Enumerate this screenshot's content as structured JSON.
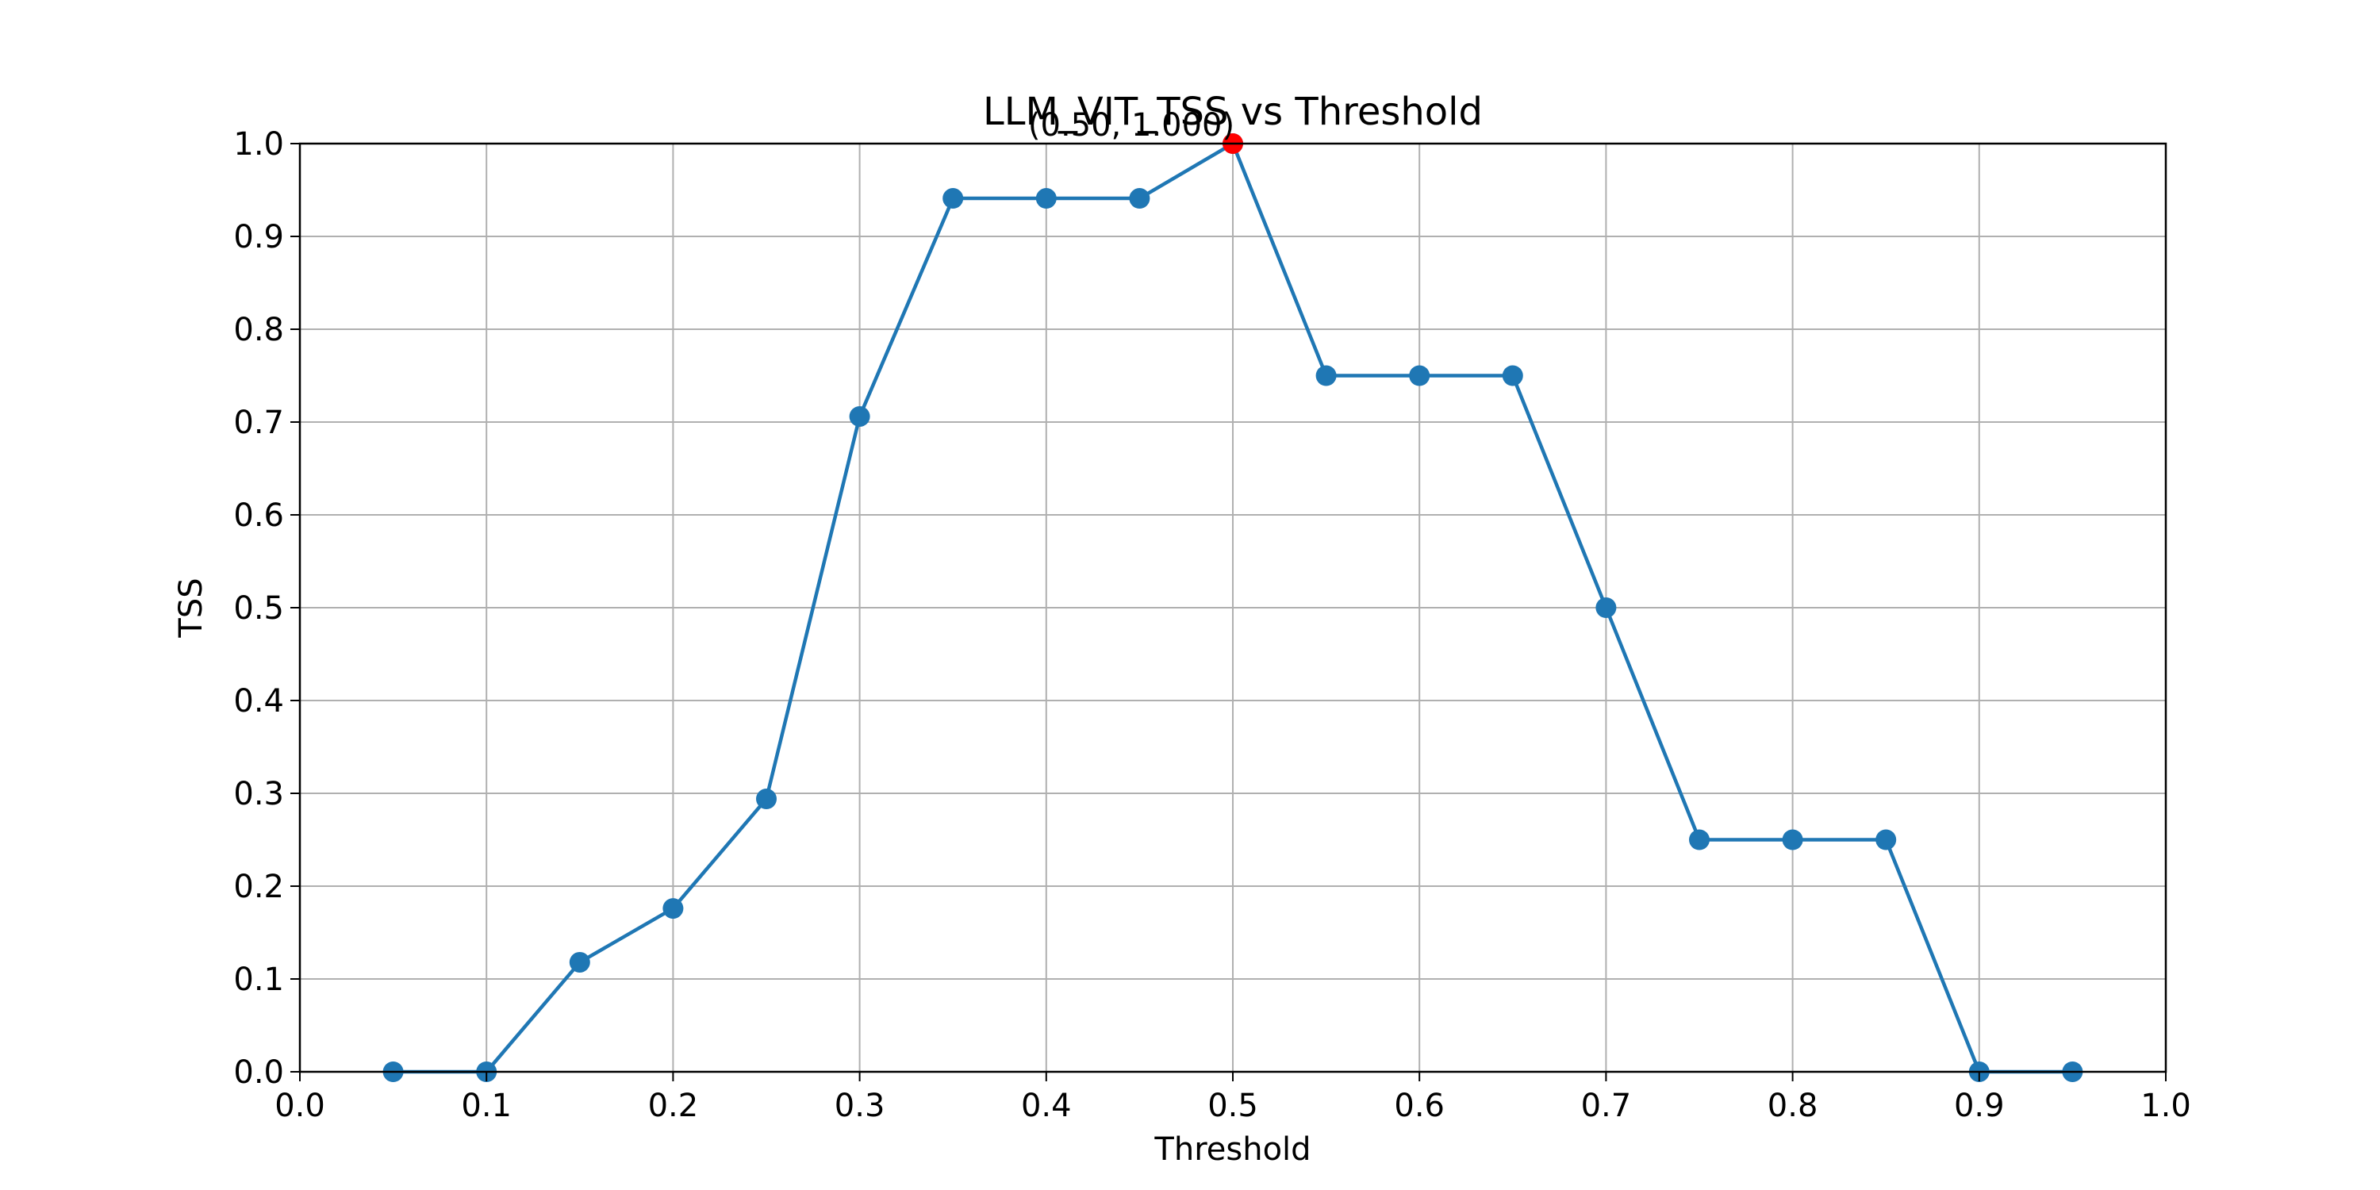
{
  "chart_data": {
    "type": "line",
    "title": "LLM_VIT_TSS vs Threshold",
    "xlabel": "Threshold",
    "ylabel": "TSS",
    "xlim": [
      0.0,
      1.0
    ],
    "ylim": [
      0.0,
      1.0
    ],
    "xticks": [
      "0.0",
      "0.1",
      "0.2",
      "0.3",
      "0.4",
      "0.5",
      "0.6",
      "0.7",
      "0.8",
      "0.9",
      "1.0"
    ],
    "yticks": [
      "0.0",
      "0.1",
      "0.2",
      "0.3",
      "0.4",
      "0.5",
      "0.6",
      "0.7",
      "0.8",
      "0.9",
      "1.0"
    ],
    "grid": true,
    "series": [
      {
        "x": [
          0.05,
          0.1,
          0.15,
          0.2,
          0.25,
          0.3,
          0.35,
          0.4,
          0.45,
          0.5,
          0.55,
          0.6,
          0.65,
          0.7,
          0.75,
          0.8,
          0.85,
          0.9,
          0.95
        ],
        "y": [
          0.0,
          0.0,
          0.118,
          0.176,
          0.294,
          0.706,
          0.941,
          0.941,
          0.941,
          1.0,
          0.75,
          0.75,
          0.75,
          0.5,
          0.25,
          0.25,
          0.25,
          0.0,
          0.0
        ],
        "color": "#1f77b4"
      }
    ],
    "highlight": {
      "x": 0.5,
      "y": 1.0,
      "label": "(0.50, 1.000)",
      "color": "#ff0000"
    }
  }
}
